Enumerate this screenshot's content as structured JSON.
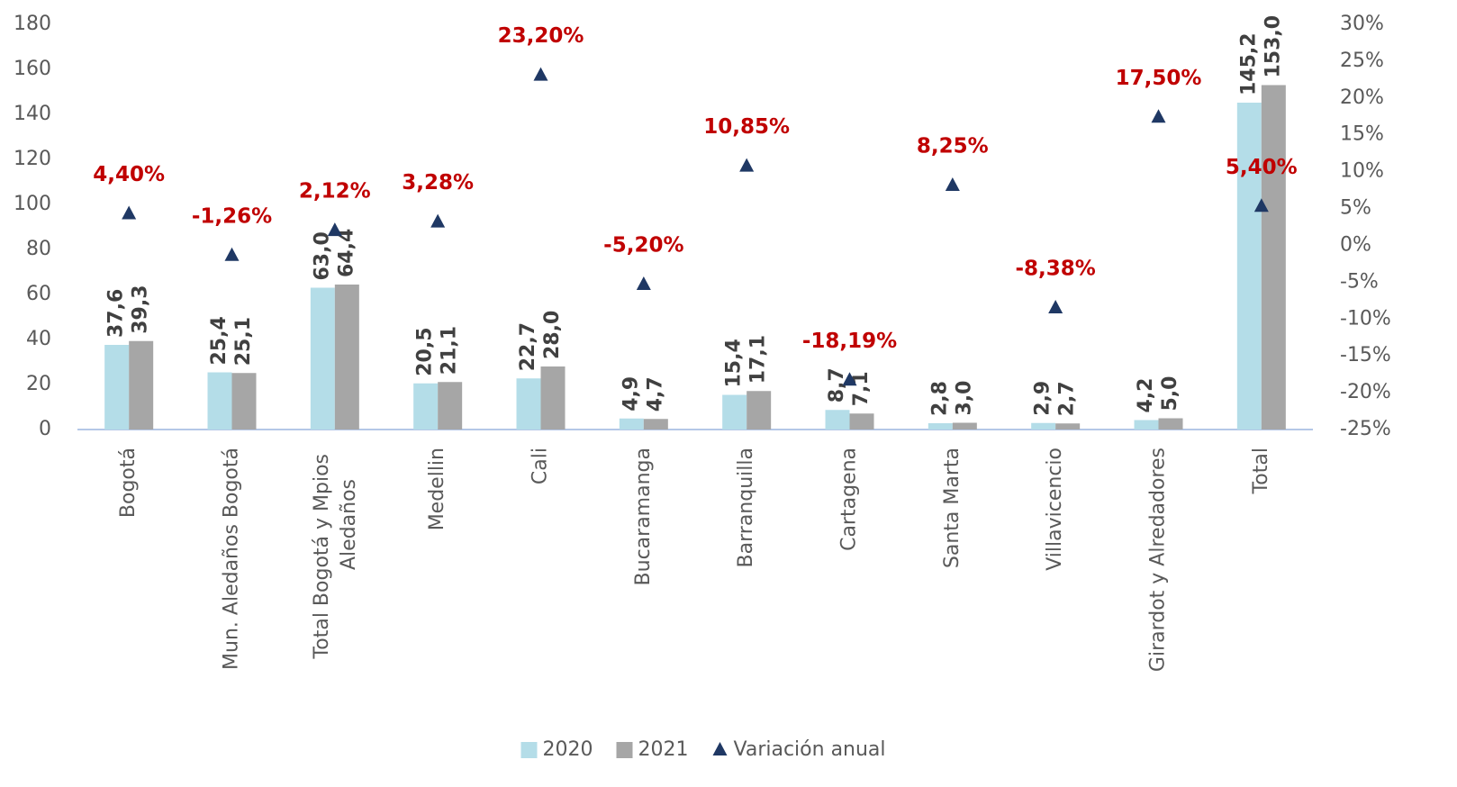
{
  "chart_data": {
    "type": "bar",
    "categories": [
      "Bogotá",
      "Mun.  Aledaños Bogotá",
      "Total Bogotá y Mpios Aledaños",
      "Medellin",
      "Cali",
      "Bucaramanga",
      "Barranquilla",
      "Cartagena",
      "Santa Marta",
      "Villavicencio",
      "Girardot y Alredadores",
      "Total"
    ],
    "series": [
      {
        "name": "2020",
        "color": "#b4dde8",
        "values": [
          37.6,
          25.4,
          63.0,
          20.5,
          22.7,
          4.9,
          15.4,
          8.7,
          2.8,
          2.9,
          4.2,
          145.2
        ],
        "value_labels": [
          "37,6",
          "25,4",
          "63,0",
          "20,5",
          "22,7",
          "4,9",
          "15,4",
          "8,7",
          "2,8",
          "2,9",
          "4,2",
          "145,2"
        ]
      },
      {
        "name": "2021",
        "color": "#a6a6a6",
        "values": [
          39.3,
          25.1,
          64.4,
          21.1,
          28.0,
          4.7,
          17.1,
          7.1,
          3.0,
          2.7,
          5.0,
          153.0
        ],
        "value_labels": [
          "39,3",
          "25,1",
          "64,4",
          "21,1",
          "28,0",
          "4,7",
          "17,1",
          "7,1",
          "3,0",
          "2,7",
          "5,0",
          "153,0"
        ]
      },
      {
        "name": "Variación anual",
        "type": "scatter",
        "axis": "y2",
        "color": "#1f3864",
        "label_color": "#c00000",
        "values": [
          4.4,
          -1.26,
          2.12,
          3.28,
          23.2,
          -5.2,
          10.85,
          -18.19,
          8.25,
          -8.38,
          17.5,
          5.4
        ],
        "value_labels": [
          "4,40%",
          "-1,26%",
          "2,12%",
          "3,28%",
          "23,20%",
          "-5,20%",
          "10,85%",
          "-18,19%",
          "8,25%",
          "-8,38%",
          "17,50%",
          "5,40%"
        ]
      }
    ],
    "ylim": [
      0,
      180
    ],
    "yticks": [
      0,
      20,
      40,
      60,
      80,
      100,
      120,
      140,
      160,
      180
    ],
    "y2lim": [
      -25,
      30
    ],
    "y2ticks": [
      {
        "value": -25,
        "label": "-25%"
      },
      {
        "value": -20,
        "label": "-20%"
      },
      {
        "value": -15,
        "label": "-15%"
      },
      {
        "value": -10,
        "label": "-10%"
      },
      {
        "value": -5,
        "label": "-5%"
      },
      {
        "value": 0,
        "label": "0%"
      },
      {
        "value": 5,
        "label": "5%"
      },
      {
        "value": 10,
        "label": "10%"
      },
      {
        "value": 15,
        "label": "15%"
      },
      {
        "value": 20,
        "label": "20%"
      },
      {
        "value": 25,
        "label": "25%"
      },
      {
        "value": 30,
        "label": "30%"
      }
    ],
    "grid": false,
    "legend": "bottom"
  }
}
